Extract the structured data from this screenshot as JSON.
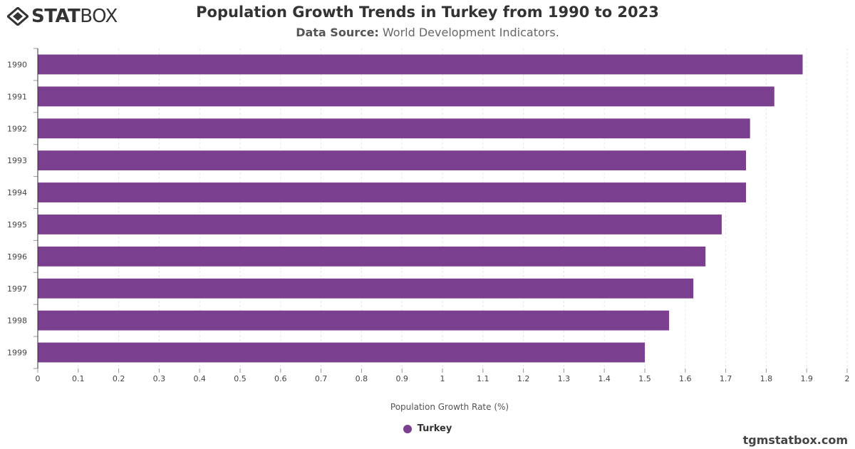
{
  "header": {
    "logo_bold": "STAT",
    "logo_light": "BOX",
    "title": "Population Growth Trends in Turkey from 1990 to 2023",
    "subtitle_label": "Data Source:",
    "subtitle_value": "World Development Indicators."
  },
  "watermark": "tgmstatbox.com",
  "colors": {
    "bar": "#7b3f8f",
    "grid": "#e6e6e6",
    "axis": "#333333"
  },
  "chart_data": {
    "type": "bar",
    "orientation": "horizontal",
    "title": "Population Growth Trends in Turkey from 1990 to 2023",
    "subtitle": "Data Source: World Development Indicators.",
    "categories": [
      "1990",
      "1991",
      "1992",
      "1993",
      "1994",
      "1995",
      "1996",
      "1997",
      "1998",
      "1999"
    ],
    "series": [
      {
        "name": "Turkey",
        "values": [
          1.89,
          1.82,
          1.76,
          1.75,
          1.75,
          1.69,
          1.65,
          1.62,
          1.56,
          1.5
        ]
      }
    ],
    "xlabel": "Population Growth Rate (%)",
    "ylabel": "",
    "xlim": [
      0,
      2
    ],
    "xticks": [
      "0",
      "0.1",
      "0.2",
      "0.3",
      "0.4",
      "0.5",
      "0.6",
      "0.7",
      "0.8",
      "0.9",
      "1",
      "1.1",
      "1.2",
      "1.3",
      "1.4",
      "1.5",
      "1.6",
      "1.7",
      "1.8",
      "1.9",
      "2"
    ],
    "grid": true,
    "legend_position": "bottom-center"
  }
}
